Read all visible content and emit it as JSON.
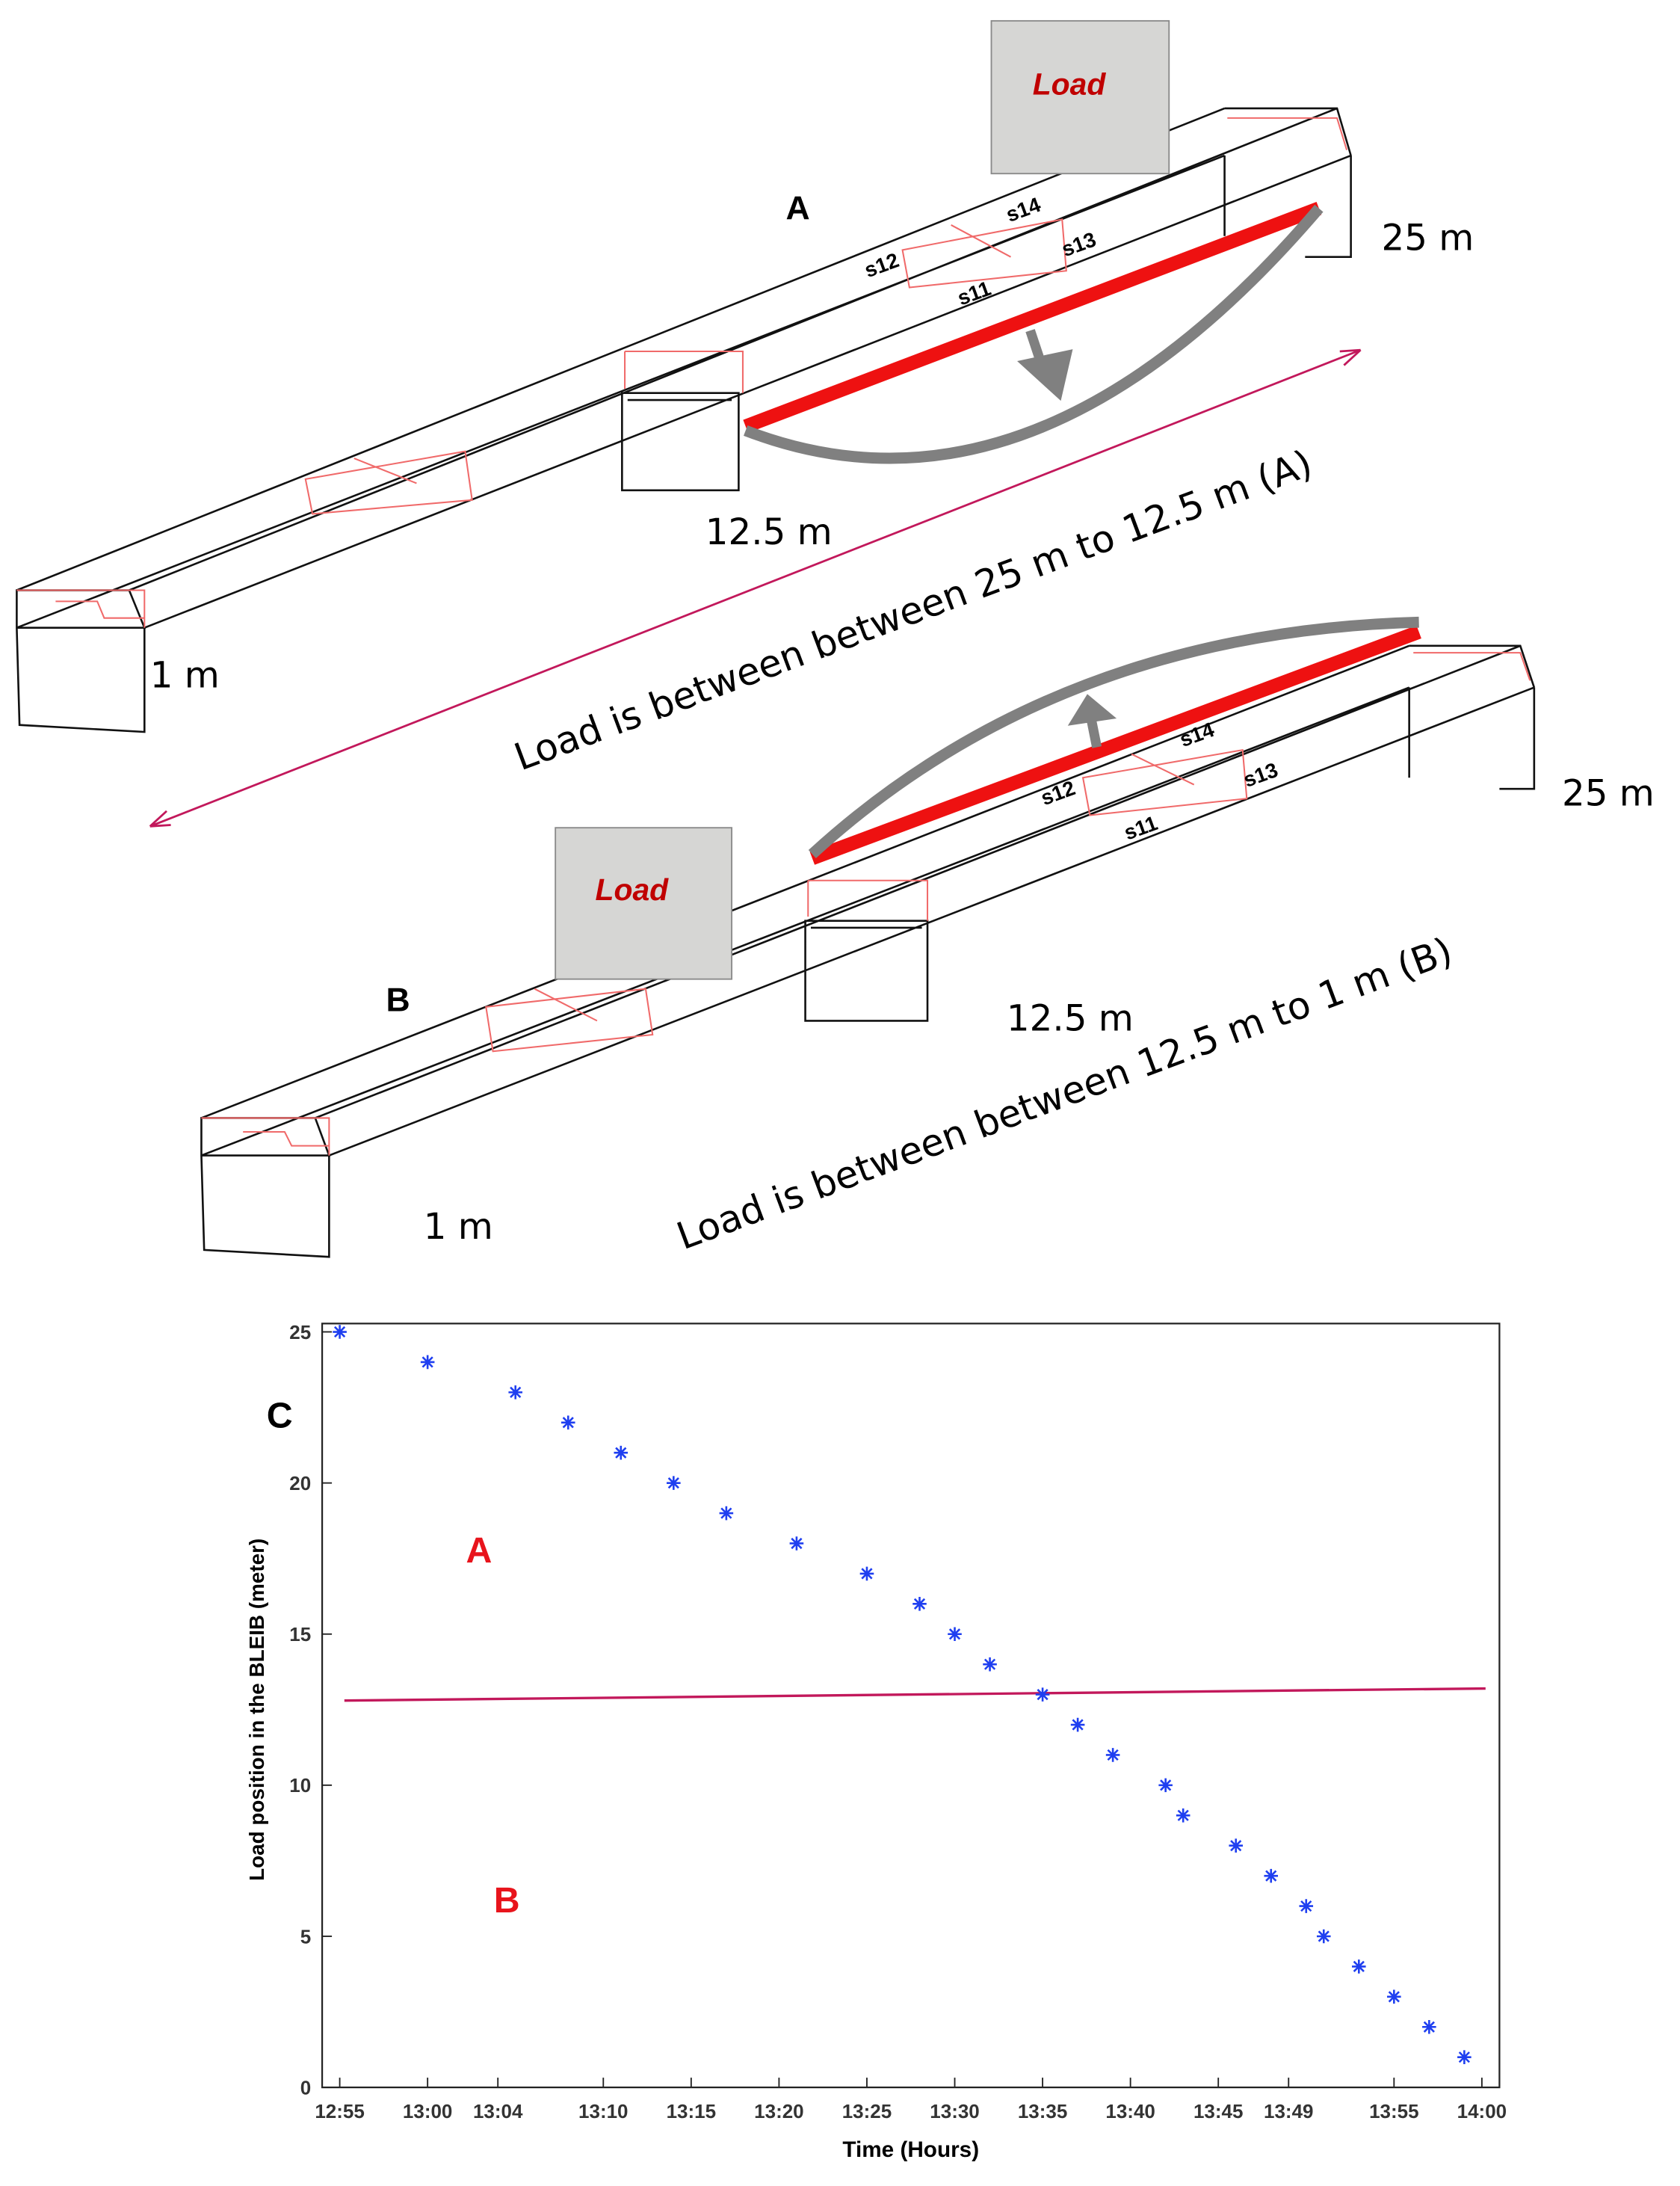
{
  "diagrams": {
    "panel_a": {
      "label": "A",
      "load": "Load",
      "sensors": [
        "s11",
        "s12",
        "s13",
        "s14"
      ],
      "end_far": "25 m",
      "middle": "12.5 m",
      "end_near": "1 m",
      "caption": "Load is between between 25 m to 12.5 m (A)"
    },
    "panel_b": {
      "label": "B",
      "load": "Load",
      "sensors": [
        "s11",
        "s12",
        "s13",
        "s14"
      ],
      "end_far": "25 m",
      "middle": "12.5 m",
      "end_near": "1 m",
      "caption": "Load is between between 12.5 m to 1 m (B)"
    }
  },
  "chart_data": {
    "type": "scatter",
    "panel_label": "C",
    "x_label": "Time (Hours)",
    "y_label": "Load position in the BLEIB (meter)",
    "xlim": [
      "12:54",
      "14:01"
    ],
    "xticks": [
      "12:55",
      "13:00",
      "13:04",
      "13:10",
      "13:15",
      "13:20",
      "13:25",
      "13:30",
      "13:35",
      "13:40",
      "13:45",
      "13:49",
      "13:55",
      "14:00"
    ],
    "ylim": [
      0,
      25
    ],
    "yticks": [
      0,
      5,
      10,
      15,
      20,
      25
    ],
    "series": [
      {
        "color": "#1f3ff0",
        "x": [
          "12:55",
          "13:00",
          "13:05",
          "13:08",
          "13:11",
          "13:14",
          "13:17",
          "13:21",
          "13:25",
          "13:28",
          "13:30",
          "13:32",
          "13:35",
          "13:37",
          "13:39",
          "13:42",
          "13:43",
          "13:46",
          "13:48",
          "13:50",
          "13:51",
          "13:53",
          "13:55",
          "13:57",
          "13:59"
        ],
        "values": [
          25,
          24,
          23,
          22,
          21,
          20,
          19,
          18,
          17,
          16,
          15,
          14,
          13,
          12,
          11,
          10,
          9,
          8,
          7,
          6,
          5,
          4,
          3,
          2,
          1
        ]
      }
    ],
    "reference_line": {
      "values": [
        12.8,
        13.2
      ],
      "color": "#c2185b"
    },
    "region_labels": [
      {
        "text": "A",
        "color": "#e8141c"
      },
      {
        "text": "B",
        "color": "#e8141c"
      }
    ]
  }
}
